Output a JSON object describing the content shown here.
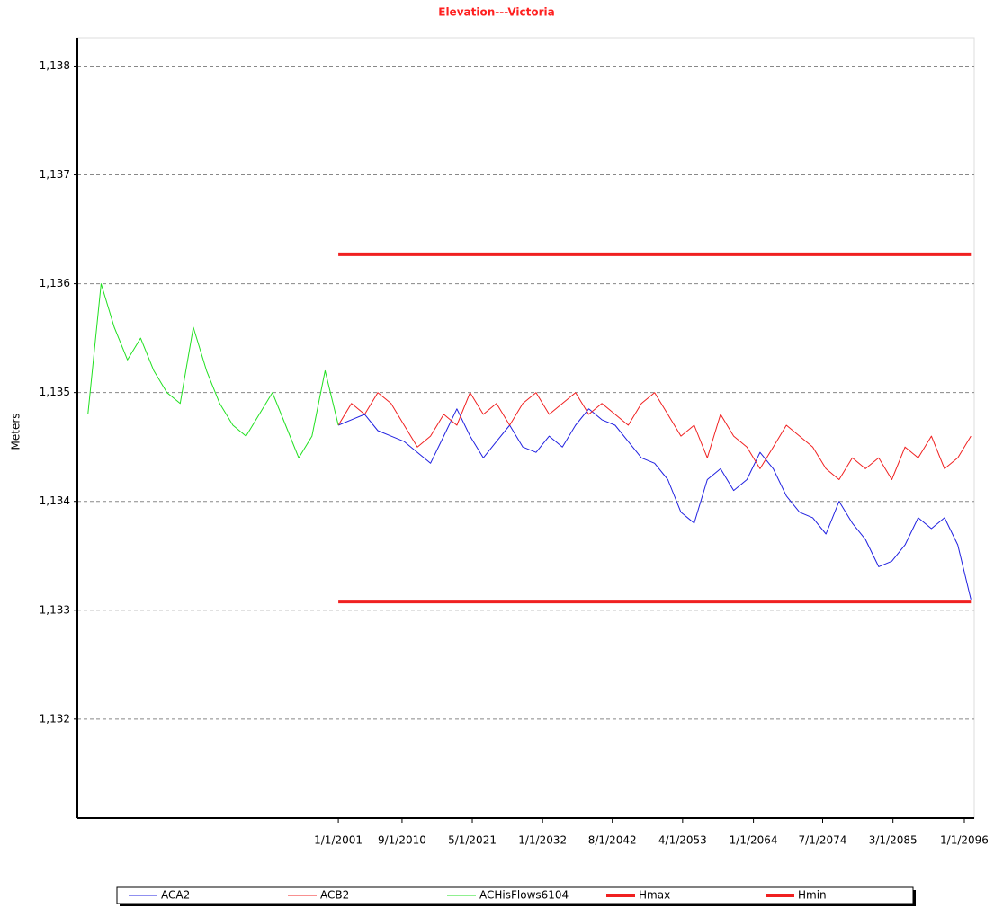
{
  "chart_data": {
    "type": "line",
    "title": "Elevation---Victoria",
    "y_label": "Meters",
    "xlim": [
      1961.4,
      2097.5
    ],
    "ylim": [
      1131.09,
      1138.26
    ],
    "xticks": [
      {
        "value": 2001,
        "label": "1/1/2001"
      },
      {
        "value": 2010.67,
        "label": "9/1/2010"
      },
      {
        "value": 2021.33,
        "label": "5/1/2021"
      },
      {
        "value": 2032,
        "label": "1/1/2032"
      },
      {
        "value": 2042.58,
        "label": "8/1/2042"
      },
      {
        "value": 2053.25,
        "label": "4/1/2053"
      },
      {
        "value": 2064,
        "label": "1/1/2064"
      },
      {
        "value": 2074.5,
        "label": "7/1/2074"
      },
      {
        "value": 2085.17,
        "label": "3/1/2085"
      },
      {
        "value": 2096,
        "label": "1/1/2096"
      }
    ],
    "yticks": [
      {
        "value": 1132,
        "label": "1,132"
      },
      {
        "value": 1133,
        "label": "1,133"
      },
      {
        "value": 1134,
        "label": "1,134"
      },
      {
        "value": 1135,
        "label": "1,135"
      },
      {
        "value": 1136,
        "label": "1,136"
      },
      {
        "value": 1137,
        "label": "1,137"
      },
      {
        "value": 1138,
        "label": "1,138"
      }
    ],
    "grid": true,
    "legend": "bottom",
    "x": [
      1963,
      1965,
      1967,
      1969,
      1971,
      1973,
      1975,
      1977,
      1979,
      1981,
      1983,
      1985,
      1987,
      1989,
      1991,
      1993,
      1995,
      1997,
      1999,
      2001,
      2003,
      2005,
      2007,
      2009,
      2011,
      2013,
      2015,
      2017,
      2019,
      2021,
      2023,
      2025,
      2027,
      2029,
      2031,
      2033,
      2035,
      2037,
      2039,
      2041,
      2043,
      2045,
      2047,
      2049,
      2051,
      2053,
      2055,
      2057,
      2059,
      2061,
      2063,
      2065,
      2067,
      2069,
      2071,
      2073,
      2075,
      2077,
      2079,
      2081,
      2083,
      2085,
      2087,
      2089,
      2091,
      2093,
      2095,
      2097
    ],
    "series": [
      {
        "name": "ACA2",
        "color": "#2020e0",
        "width": 1,
        "values": [
          null,
          null,
          null,
          null,
          null,
          null,
          null,
          null,
          null,
          null,
          null,
          null,
          null,
          null,
          null,
          null,
          null,
          null,
          null,
          1134.7,
          1134.75,
          1134.8,
          1134.65,
          1134.6,
          1134.55,
          1134.45,
          1134.35,
          1134.6,
          1134.85,
          1134.6,
          1134.4,
          1134.55,
          1134.7,
          1134.5,
          1134.45,
          1134.6,
          1134.5,
          1134.7,
          1134.85,
          1134.75,
          1134.7,
          1134.55,
          1134.4,
          1134.35,
          1134.2,
          1133.9,
          1133.8,
          1134.2,
          1134.3,
          1134.1,
          1134.2,
          1134.45,
          1134.3,
          1134.05,
          1133.9,
          1133.85,
          1133.7,
          1134.0,
          1133.8,
          1133.65,
          1133.4,
          1133.45,
          1133.6,
          1133.85,
          1133.75,
          1133.85,
          1133.6,
          1133.1
        ]
      },
      {
        "name": "ACB2",
        "color": "#f02020",
        "width": 1,
        "values": [
          null,
          null,
          null,
          null,
          null,
          null,
          null,
          null,
          null,
          null,
          null,
          null,
          null,
          null,
          null,
          null,
          null,
          null,
          null,
          1134.7,
          1134.9,
          1134.8,
          1135.0,
          1134.9,
          1134.7,
          1134.5,
          1134.6,
          1134.8,
          1134.7,
          1135.0,
          1134.8,
          1134.9,
          1134.7,
          1134.9,
          1135.0,
          1134.8,
          1134.9,
          1135.0,
          1134.8,
          1134.9,
          1134.8,
          1134.7,
          1134.9,
          1135.0,
          1134.8,
          1134.6,
          1134.7,
          1134.4,
          1134.8,
          1134.6,
          1134.5,
          1134.3,
          1134.5,
          1134.7,
          1134.6,
          1134.5,
          1134.3,
          1134.2,
          1134.4,
          1134.3,
          1134.4,
          1134.2,
          1134.5,
          1134.4,
          1134.6,
          1134.3,
          1134.4,
          1134.6
        ]
      },
      {
        "name": "ACHisFlows6104",
        "color": "#20e020",
        "width": 1,
        "values": [
          1134.8,
          1136.0,
          1135.6,
          1135.3,
          1135.5,
          1135.2,
          1135.0,
          1134.9,
          1135.6,
          1135.2,
          1134.9,
          1134.7,
          1134.6,
          1134.8,
          1135.0,
          1134.7,
          1134.4,
          1134.6,
          1135.2,
          1134.7,
          null,
          null,
          null,
          null,
          null,
          null,
          null,
          null,
          null,
          null,
          null,
          null,
          null,
          null,
          null,
          null,
          null,
          null,
          null,
          null,
          null,
          null,
          null,
          null,
          null,
          null,
          null,
          null,
          null,
          null,
          null,
          null,
          null,
          null,
          null,
          null,
          null,
          null,
          null,
          null,
          null,
          null,
          null,
          null,
          null,
          null,
          null,
          null
        ]
      },
      {
        "name": "Hmax",
        "color": "#f02020",
        "width": 4,
        "values": [
          null,
          null,
          null,
          null,
          null,
          null,
          null,
          null,
          null,
          null,
          null,
          null,
          null,
          null,
          null,
          null,
          null,
          null,
          null,
          1136.27,
          1136.27,
          1136.27,
          1136.27,
          1136.27,
          1136.27,
          1136.27,
          1136.27,
          1136.27,
          1136.27,
          1136.27,
          1136.27,
          1136.27,
          1136.27,
          1136.27,
          1136.27,
          1136.27,
          1136.27,
          1136.27,
          1136.27,
          1136.27,
          1136.27,
          1136.27,
          1136.27,
          1136.27,
          1136.27,
          1136.27,
          1136.27,
          1136.27,
          1136.27,
          1136.27,
          1136.27,
          1136.27,
          1136.27,
          1136.27,
          1136.27,
          1136.27,
          1136.27,
          1136.27,
          1136.27,
          1136.27,
          1136.27,
          1136.27,
          1136.27,
          1136.27,
          1136.27,
          1136.27,
          1136.27,
          1136.27
        ]
      },
      {
        "name": "Hmin",
        "color": "#f02020",
        "width": 4,
        "values": [
          null,
          null,
          null,
          null,
          null,
          null,
          null,
          null,
          null,
          null,
          null,
          null,
          null,
          null,
          null,
          null,
          null,
          null,
          null,
          1133.08,
          1133.08,
          1133.08,
          1133.08,
          1133.08,
          1133.08,
          1133.08,
          1133.08,
          1133.08,
          1133.08,
          1133.08,
          1133.08,
          1133.08,
          1133.08,
          1133.08,
          1133.08,
          1133.08,
          1133.08,
          1133.08,
          1133.08,
          1133.08,
          1133.08,
          1133.08,
          1133.08,
          1133.08,
          1133.08,
          1133.08,
          1133.08,
          1133.08,
          1133.08,
          1133.08,
          1133.08,
          1133.08,
          1133.08,
          1133.08,
          1133.08,
          1133.08,
          1133.08,
          1133.08,
          1133.08,
          1133.08,
          1133.08,
          1133.08,
          1133.08,
          1133.08,
          1133.08,
          1133.08,
          1133.08,
          1133.08
        ]
      }
    ]
  }
}
